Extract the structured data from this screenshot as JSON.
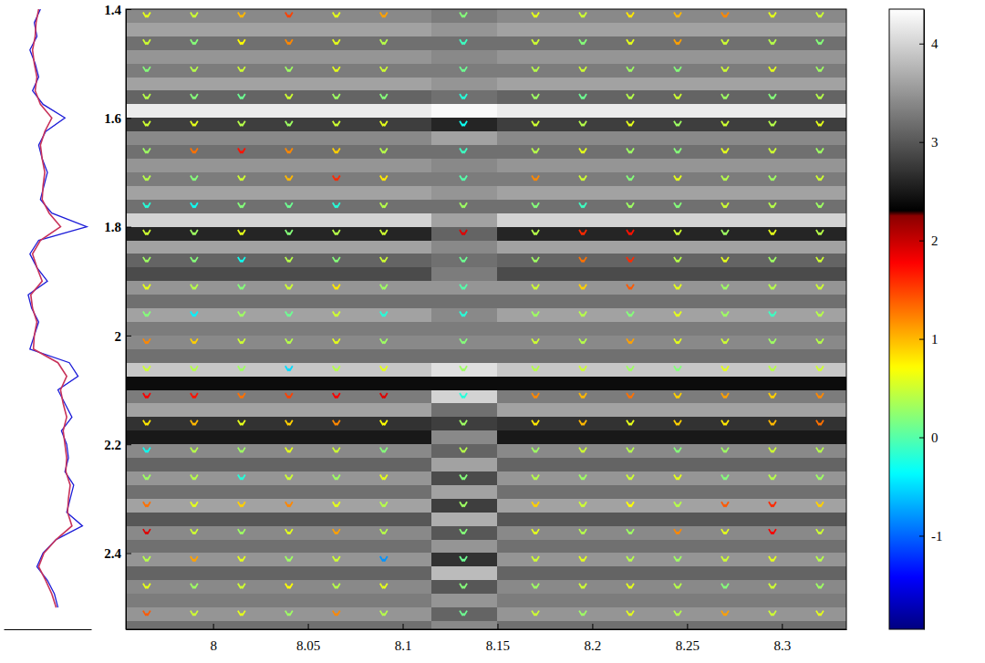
{
  "chart_data": {
    "type": "heatmap",
    "xlim": [
      7.954,
      8.334
    ],
    "xticks": [
      8,
      8.05,
      8.1,
      8.15,
      8.2,
      8.25,
      8.3
    ],
    "ylim": [
      1.4,
      2.54
    ],
    "yticks": [
      1.4,
      1.6,
      1.8,
      2,
      2.2,
      2.4
    ],
    "heatmap": {
      "y": [
        1.4,
        1.425,
        1.45,
        1.475,
        1.5,
        1.525,
        1.55,
        1.575,
        1.6,
        1.625,
        1.65,
        1.675,
        1.7,
        1.725,
        1.75,
        1.775,
        1.8,
        1.825,
        1.85,
        1.875,
        1.9,
        1.925,
        1.95,
        1.975,
        2,
        2.025,
        2.05,
        2.075,
        2.1,
        2.125,
        2.15,
        2.175,
        2.2,
        2.225,
        2.25,
        2.275,
        2.3,
        2.325,
        2.35,
        2.375,
        2.4,
        2.425,
        2.45,
        2.475,
        2.5,
        2.525
      ],
      "values": [
        3.4,
        3.6,
        3.2,
        3.5,
        3.3,
        3.6,
        3.1,
        4.2,
        2.8,
        3.4,
        3.2,
        3.5,
        3.3,
        3.6,
        3.2,
        4.0,
        2.6,
        3.6,
        3.1,
        2.9,
        3.5,
        3.2,
        3.6,
        3.3,
        3.4,
        3.2,
        3.9,
        2.4,
        3.3,
        3.6,
        2.7,
        2.5,
        3.4,
        3.1,
        3.5,
        3.2,
        3.6,
        3.0,
        3.4,
        3.2,
        3.5,
        3.1,
        3.4,
        3.3,
        3.5,
        3.2
      ],
      "strip_x": [
        8.115,
        8.15
      ],
      "strip_values": [
        3.3,
        3.5,
        3.2,
        3.4,
        3.3,
        3.5,
        3.2,
        4.3,
        2.6,
        3.6,
        3.2,
        3.4,
        3.3,
        3.5,
        3.2,
        3.6,
        3.1,
        3.4,
        3.2,
        3.3,
        3.5,
        3.2,
        3.4,
        3.3,
        3.4,
        3.2,
        4.1,
        2.4,
        4.0,
        3.2,
        2.8,
        3.4,
        3.1,
        3.6,
        2.9,
        3.6,
        2.8,
        3.7,
        3.0,
        3.5,
        2.7,
        3.8,
        3.0,
        3.5,
        3.1,
        3.4
      ]
    },
    "markers": {
      "marker": "chevron",
      "x": [
        7.965,
        7.99,
        8.015,
        8.04,
        8.065,
        8.09,
        8.132,
        8.17,
        8.195,
        8.22,
        8.245,
        8.27,
        8.295,
        8.32
      ],
      "rows": [
        {
          "y": 1.41,
          "values": [
            0.6,
            0.5,
            1.0,
            1.5,
            0.6,
            1.1,
            0.2,
            0.6,
            0.5,
            0.8,
            1.0,
            1.2,
            0.6,
            0.5
          ]
        },
        {
          "y": 1.46,
          "values": [
            0.5,
            0.2,
            0.7,
            1.2,
            0.6,
            0.4,
            -0.1,
            0.5,
            0.2,
            0.6,
            1.1,
            0.5,
            0.4,
            0.2
          ]
        },
        {
          "y": 1.51,
          "values": [
            0.2,
            0.4,
            0.5,
            0.3,
            0.6,
            0.5,
            0.1,
            0.4,
            0.5,
            0.3,
            0.2,
            0.5,
            0.6,
            0.3
          ]
        },
        {
          "y": 1.56,
          "values": [
            0.4,
            0.2,
            0.1,
            0.5,
            0.3,
            0.2,
            -0.2,
            0.3,
            0.1,
            0.4,
            0.5,
            0.3,
            0.2,
            0.4
          ]
        },
        {
          "y": 1.61,
          "values": [
            0.5,
            0.6,
            0.4,
            0.3,
            0.5,
            0.6,
            -0.3,
            0.5,
            0.4,
            0.6,
            0.3,
            0.5,
            0.4,
            0.6
          ]
        },
        {
          "y": 1.66,
          "values": [
            0.3,
            1.3,
            1.7,
            1.2,
            0.9,
            0.4,
            -0.1,
            0.4,
            0.6,
            0.3,
            0.2,
            0.6,
            0.5,
            0.3
          ]
        },
        {
          "y": 1.71,
          "values": [
            0.4,
            0.2,
            0.5,
            1.0,
            1.6,
            0.8,
            0.0,
            1.2,
            0.5,
            0.2,
            0.6,
            0.4,
            0.3,
            0.5
          ]
        },
        {
          "y": 1.76,
          "values": [
            -0.2,
            -0.3,
            0.2,
            0.1,
            -0.2,
            0.4,
            0.3,
            0.2,
            -0.1,
            0.3,
            0.2,
            0.5,
            0.4,
            0.3
          ]
        },
        {
          "y": 1.81,
          "values": [
            0.5,
            0.3,
            0.6,
            0.2,
            0.4,
            0.5,
            1.9,
            0.4,
            1.6,
            1.7,
            0.5,
            0.3,
            0.6,
            0.4
          ]
        },
        {
          "y": 1.86,
          "values": [
            0.3,
            0.2,
            -0.3,
            0.4,
            0.2,
            0.5,
            0.1,
            0.3,
            1.3,
            1.6,
            0.4,
            0.6,
            0.3,
            0.5
          ]
        },
        {
          "y": 1.91,
          "values": [
            0.6,
            0.4,
            0.2,
            0.5,
            0.8,
            0.3,
            0.0,
            0.5,
            0.9,
            1.4,
            0.6,
            0.3,
            0.4,
            0.5
          ]
        },
        {
          "y": 1.96,
          "values": [
            0.2,
            -0.4,
            0.3,
            0.1,
            0.5,
            -0.2,
            -0.2,
            0.3,
            0.4,
            0.2,
            0.6,
            0.3,
            -0.1,
            0.4
          ]
        },
        {
          "y": 2.01,
          "values": [
            1.2,
            0.9,
            0.5,
            0.4,
            0.6,
            0.3,
            0.2,
            0.5,
            0.4,
            1.1,
            0.6,
            0.5,
            0.3,
            0.4
          ]
        },
        {
          "y": 2.06,
          "values": [
            0.5,
            0.4,
            0.3,
            -0.5,
            0.4,
            0.6,
            0.3,
            0.4,
            0.5,
            0.3,
            0.2,
            0.6,
            0.4,
            0.5
          ]
        },
        {
          "y": 2.11,
          "values": [
            1.8,
            1.7,
            1.3,
            1.5,
            1.8,
            1.9,
            -0.2,
            1.2,
            1.0,
            1.3,
            0.9,
            1.1,
            0.9,
            1.2
          ]
        },
        {
          "y": 2.16,
          "values": [
            0.8,
            1.0,
            0.6,
            0.9,
            1.2,
            0.7,
            0.3,
            0.8,
            1.0,
            0.6,
            0.9,
            0.8,
            1.0,
            1.3
          ]
        },
        {
          "y": 2.21,
          "values": [
            -0.3,
            0.4,
            0.3,
            0.6,
            0.5,
            0.2,
            0.4,
            0.3,
            0.5,
            0.4,
            0.2,
            0.3,
            0.5,
            0.4
          ]
        },
        {
          "y": 2.26,
          "values": [
            0.3,
            0.4,
            -0.2,
            0.5,
            0.3,
            0.6,
            0.2,
            0.4,
            0.3,
            0.5,
            0.6,
            0.2,
            0.4,
            0.3
          ]
        },
        {
          "y": 2.31,
          "values": [
            1.3,
            0.6,
            0.9,
            1.2,
            0.6,
            0.4,
            0.3,
            0.9,
            0.5,
            0.7,
            0.4,
            1.4,
            1.6,
            0.9
          ]
        },
        {
          "y": 2.36,
          "values": [
            1.9,
            0.5,
            0.3,
            0.6,
            1.1,
            0.4,
            0.2,
            0.6,
            0.4,
            0.3,
            1.2,
            0.6,
            1.8,
            0.5
          ]
        },
        {
          "y": 2.41,
          "values": [
            0.4,
            1.1,
            0.6,
            0.3,
            0.5,
            -0.8,
            0.1,
            0.5,
            0.6,
            0.4,
            0.3,
            0.5,
            0.6,
            0.4
          ]
        },
        {
          "y": 2.46,
          "values": [
            0.6,
            0.3,
            0.5,
            0.7,
            0.4,
            0.6,
            0.2,
            0.3,
            0.5,
            0.6,
            0.4,
            0.2,
            0.5,
            0.3
          ]
        },
        {
          "y": 2.51,
          "values": [
            1.4,
            0.5,
            0.6,
            0.3,
            1.2,
            0.4,
            0.1,
            0.5,
            0.3,
            0.6,
            0.4,
            1.1,
            0.5,
            0.6
          ]
        }
      ]
    },
    "colorbar": {
      "range": [
        -1.95,
        4.35
      ],
      "ticks": [
        -1,
        0,
        1,
        2,
        3,
        4
      ],
      "gray_from": 2.3
    },
    "well_log": {
      "xlim": [
        0,
        1
      ],
      "tick_labels": false,
      "depth": [
        1.4,
        1.425,
        1.45,
        1.475,
        1.5,
        1.525,
        1.55,
        1.575,
        1.6,
        1.625,
        1.65,
        1.675,
        1.7,
        1.725,
        1.75,
        1.775,
        1.8,
        1.825,
        1.85,
        1.875,
        1.9,
        1.925,
        1.95,
        1.975,
        2,
        2.025,
        2.05,
        2.075,
        2.1,
        2.125,
        2.15,
        2.175,
        2.2,
        2.225,
        2.25,
        2.275,
        2.3,
        2.325,
        2.35,
        2.375,
        2.4,
        2.425,
        2.45,
        2.475,
        2.5
      ],
      "series": [
        {
          "color": "#1c1cd8",
          "values": [
            0.42,
            0.35,
            0.38,
            0.3,
            0.36,
            0.4,
            0.33,
            0.45,
            0.7,
            0.48,
            0.4,
            0.44,
            0.5,
            0.46,
            0.42,
            0.55,
            0.95,
            0.4,
            0.3,
            0.38,
            0.5,
            0.28,
            0.32,
            0.4,
            0.35,
            0.3,
            0.75,
            0.85,
            0.62,
            0.7,
            0.78,
            0.66,
            0.72,
            0.74,
            0.7,
            0.8,
            0.76,
            0.72,
            0.9,
            0.6,
            0.45,
            0.38,
            0.5,
            0.58,
            0.62
          ]
        },
        {
          "color": "#c8325a",
          "values": [
            0.4,
            0.37,
            0.36,
            0.33,
            0.35,
            0.38,
            0.36,
            0.42,
            0.55,
            0.47,
            0.42,
            0.44,
            0.47,
            0.45,
            0.44,
            0.52,
            0.65,
            0.42,
            0.33,
            0.38,
            0.44,
            0.31,
            0.33,
            0.38,
            0.35,
            0.34,
            0.62,
            0.72,
            0.65,
            0.68,
            0.72,
            0.68,
            0.7,
            0.72,
            0.71,
            0.76,
            0.74,
            0.73,
            0.78,
            0.6,
            0.46,
            0.4,
            0.48,
            0.55,
            0.6
          ]
        }
      ]
    }
  }
}
